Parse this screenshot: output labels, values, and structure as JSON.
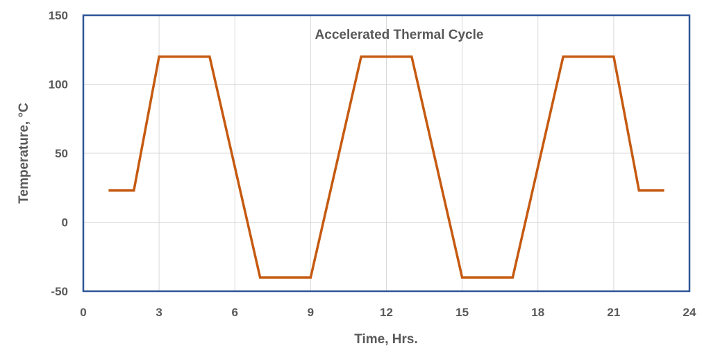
{
  "chart_data": {
    "type": "line",
    "title": "Accelerated Thermal Cycle",
    "xlabel": "Time, Hrs.",
    "ylabel": "Temperature, °C",
    "xlim": [
      0,
      24
    ],
    "ylim": [
      -50,
      150
    ],
    "xticks": [
      0,
      3,
      6,
      9,
      12,
      15,
      18,
      21,
      24
    ],
    "yticks": [
      -50,
      0,
      50,
      100,
      150
    ],
    "grid": true,
    "series": [
      {
        "color": "#c55a11",
        "x": [
          1,
          2,
          3,
          5,
          7,
          9,
          11,
          13,
          15,
          17,
          19,
          21,
          22,
          23
        ],
        "y": [
          23,
          23,
          120,
          120,
          -40,
          -40,
          120,
          120,
          -40,
          -40,
          120,
          120,
          23,
          23
        ]
      }
    ]
  },
  "colors": {
    "plot_border": "#2f5597",
    "line": "#c55a11",
    "grid": "#d9d9d9",
    "text": "#595959"
  }
}
